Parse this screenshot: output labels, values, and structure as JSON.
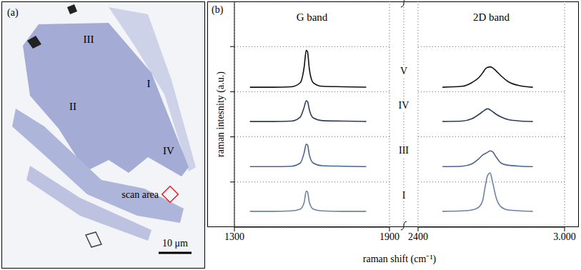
{
  "image": {
    "panel": "(a)",
    "labels": [
      "III",
      "I",
      "II",
      "IV"
    ],
    "scan_area": "scan area",
    "scale_bar": "10 μm"
  },
  "chart_data": [
    {
      "type": "line",
      "panel": "(b)",
      "title": "G band",
      "y_label": "raman intesnity (a.u.)",
      "x_label": "raman shift (cm⁻¹)",
      "x": [
        1360,
        1450,
        1520,
        1555,
        1570,
        1578,
        1583,
        1590,
        1605,
        1640,
        1720,
        1810
      ],
      "xlim": [
        1300,
        1900
      ],
      "xticks": [
        1300,
        1900
      ],
      "ylim": [
        0,
        5
      ],
      "yticks": [
        1,
        2,
        3,
        4
      ],
      "tick_labels": "x",
      "grid": true,
      "series": [
        {
          "name": "V",
          "color": "#111111",
          "values": [
            3.1,
            3.1,
            3.11,
            3.2,
            3.55,
            3.92,
            3.88,
            3.5,
            3.2,
            3.12,
            3.11,
            3.1
          ]
        },
        {
          "name": "IV",
          "color": "#2e3f5e",
          "values": [
            2.34,
            2.34,
            2.35,
            2.44,
            2.66,
            2.8,
            2.78,
            2.6,
            2.42,
            2.36,
            2.35,
            2.34
          ]
        },
        {
          "name": "III",
          "color": "#4a6590",
          "values": [
            1.34,
            1.34,
            1.35,
            1.42,
            1.65,
            1.84,
            1.82,
            1.6,
            1.42,
            1.36,
            1.35,
            1.34
          ]
        },
        {
          "name": "I",
          "color": "#6a83a8",
          "values": [
            0.35,
            0.35,
            0.36,
            0.4,
            0.55,
            0.8,
            0.78,
            0.55,
            0.4,
            0.36,
            0.35,
            0.35
          ]
        }
      ]
    },
    {
      "type": "line",
      "title": "2D band",
      "x": [
        2500,
        2580,
        2620,
        2650,
        2665,
        2675,
        2685,
        2695,
        2705,
        2720,
        2740,
        2770,
        2820,
        2870
      ],
      "xlim": [
        2400,
        3000
      ],
      "xticks": [
        2400,
        {
          "value": 3000,
          "label": "3.000"
        }
      ],
      "ylim": [
        0,
        5
      ],
      "yticks": [
        1,
        2,
        3,
        4
      ],
      "tick_labels": "x",
      "grid": true,
      "series": [
        {
          "name": "V",
          "color": "#111111",
          "values": [
            3.1,
            3.12,
            3.2,
            3.32,
            3.42,
            3.5,
            3.54,
            3.55,
            3.53,
            3.46,
            3.35,
            3.22,
            3.13,
            3.1
          ]
        },
        {
          "name": "IV",
          "color": "#2e3f5e",
          "values": [
            2.34,
            2.35,
            2.4,
            2.5,
            2.56,
            2.6,
            2.62,
            2.6,
            2.56,
            2.5,
            2.44,
            2.38,
            2.35,
            2.34
          ]
        },
        {
          "name": "III",
          "color": "#4a6590",
          "values": [
            1.34,
            1.35,
            1.4,
            1.52,
            1.6,
            1.63,
            1.66,
            1.69,
            1.67,
            1.55,
            1.42,
            1.37,
            1.35,
            1.34
          ]
        },
        {
          "name": "I",
          "color": "#6a83a8",
          "values": [
            0.35,
            0.36,
            0.38,
            0.45,
            0.6,
            0.9,
            1.15,
            1.2,
            1.0,
            0.65,
            0.45,
            0.38,
            0.36,
            0.35
          ]
        }
      ]
    }
  ]
}
